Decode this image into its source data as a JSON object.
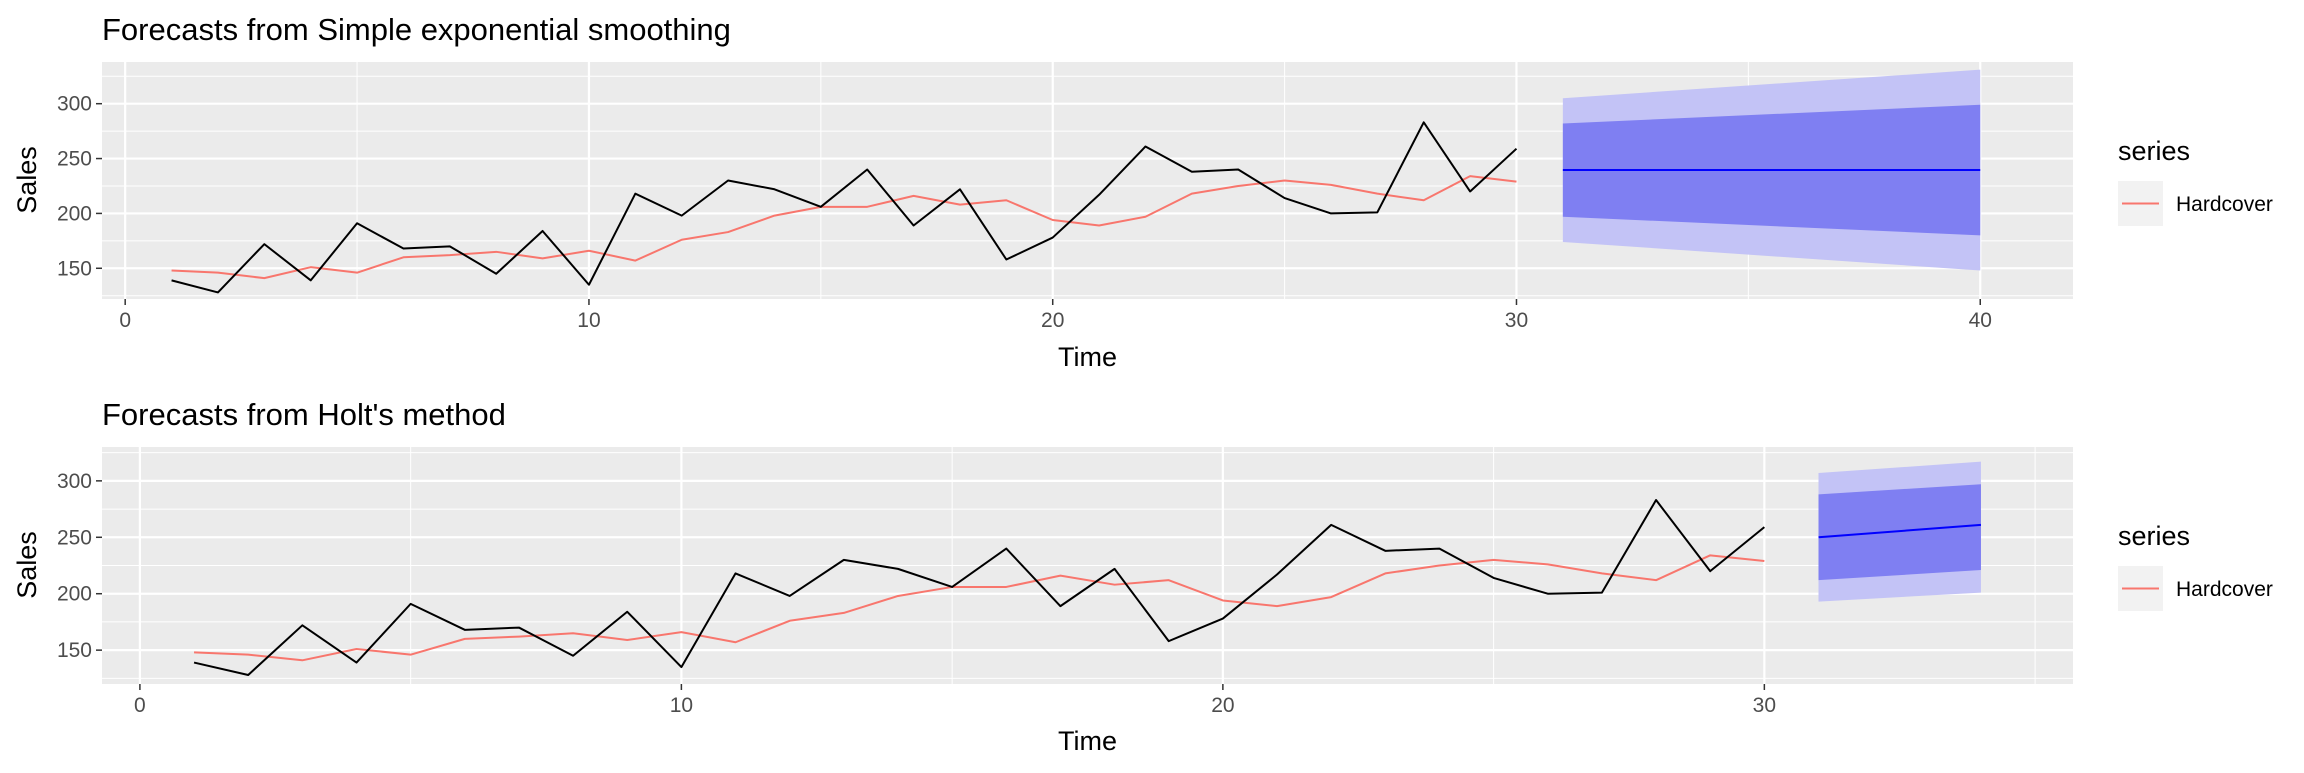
{
  "chart_data": [
    {
      "type": "line",
      "title": "Forecasts from Simple exponential smoothing",
      "xlabel": "Time",
      "ylabel": "Sales",
      "xlim": [
        -0.5,
        42
      ],
      "ylim": [
        122,
        338
      ],
      "xticks": [
        0,
        10,
        20,
        30,
        40
      ],
      "yticks": [
        150,
        200,
        250,
        300
      ],
      "grid": true,
      "legend": {
        "title": "series",
        "position": "right",
        "entries": [
          "Hardcover"
        ]
      },
      "series": [
        {
          "name": "Data",
          "color": "#000000",
          "x": [
            1,
            2,
            3,
            4,
            5,
            6,
            7,
            8,
            9,
            10,
            11,
            12,
            13,
            14,
            15,
            16,
            17,
            18,
            19,
            20,
            21,
            22,
            23,
            24,
            25,
            26,
            27,
            28,
            29,
            30
          ],
          "values": [
            139,
            128,
            172,
            139,
            191,
            168,
            170,
            145,
            184,
            135,
            218,
            198,
            230,
            222,
            206,
            240,
            189,
            222,
            158,
            178,
            217,
            261,
            238,
            240,
            214,
            200,
            201,
            283,
            220,
            259
          ]
        },
        {
          "name": "Hardcover",
          "color": "#f8766d",
          "x": [
            1,
            2,
            3,
            4,
            5,
            6,
            7,
            8,
            9,
            10,
            11,
            12,
            13,
            14,
            15,
            16,
            17,
            18,
            19,
            20,
            21,
            22,
            23,
            24,
            25,
            26,
            27,
            28,
            29,
            30
          ],
          "values": [
            148,
            146,
            141,
            151,
            146,
            160,
            162,
            165,
            159,
            166,
            157,
            176,
            183,
            198,
            206,
            206,
            216,
            208,
            212,
            194,
            189,
            197,
            218,
            225,
            230,
            226,
            218,
            212,
            234,
            229
          ]
        }
      ],
      "forecast": {
        "x": [
          31,
          40
        ],
        "mean": [
          239.6,
          239.6
        ],
        "lo80": [
          197,
          180
        ],
        "hi80": [
          282,
          299
        ],
        "lo95": [
          174,
          148
        ],
        "hi95": [
          305,
          331
        ],
        "color_mean": "#0000ff",
        "color_80": "#7f7ff2",
        "color_95": "#c3c3f6"
      }
    },
    {
      "type": "line",
      "title": "Forecasts from Holt's method",
      "xlabel": "Time",
      "ylabel": "Sales",
      "xlim": [
        -0.7,
        35.7
      ],
      "ylim": [
        120,
        330
      ],
      "xticks": [
        0,
        10,
        20,
        30
      ],
      "yticks": [
        150,
        200,
        250,
        300
      ],
      "grid": true,
      "legend": {
        "title": "series",
        "position": "right",
        "entries": [
          "Hardcover"
        ]
      },
      "series": [
        {
          "name": "Data",
          "color": "#000000",
          "x": [
            1,
            2,
            3,
            4,
            5,
            6,
            7,
            8,
            9,
            10,
            11,
            12,
            13,
            14,
            15,
            16,
            17,
            18,
            19,
            20,
            21,
            22,
            23,
            24,
            25,
            26,
            27,
            28,
            29,
            30
          ],
          "values": [
            139,
            128,
            172,
            139,
            191,
            168,
            170,
            145,
            184,
            135,
            218,
            198,
            230,
            222,
            206,
            240,
            189,
            222,
            158,
            178,
            217,
            261,
            238,
            240,
            214,
            200,
            201,
            283,
            220,
            259
          ]
        },
        {
          "name": "Hardcover",
          "color": "#f8766d",
          "x": [
            1,
            2,
            3,
            4,
            5,
            6,
            7,
            8,
            9,
            10,
            11,
            12,
            13,
            14,
            15,
            16,
            17,
            18,
            19,
            20,
            21,
            22,
            23,
            24,
            25,
            26,
            27,
            28,
            29,
            30
          ],
          "values": [
            148,
            146,
            141,
            151,
            146,
            160,
            162,
            165,
            159,
            166,
            157,
            176,
            183,
            198,
            206,
            206,
            216,
            208,
            212,
            194,
            189,
            197,
            218,
            225,
            230,
            226,
            218,
            212,
            234,
            229
          ]
        }
      ],
      "forecast": {
        "x": [
          31,
          34
        ],
        "mean": [
          250,
          261
        ],
        "lo80": [
          212,
          221
        ],
        "hi80": [
          288,
          297
        ],
        "lo95": [
          193,
          201
        ],
        "hi95": [
          307,
          317
        ],
        "color_mean": "#0000ff",
        "color_80": "#7f7ff2",
        "color_95": "#c3c3f6"
      }
    }
  ]
}
